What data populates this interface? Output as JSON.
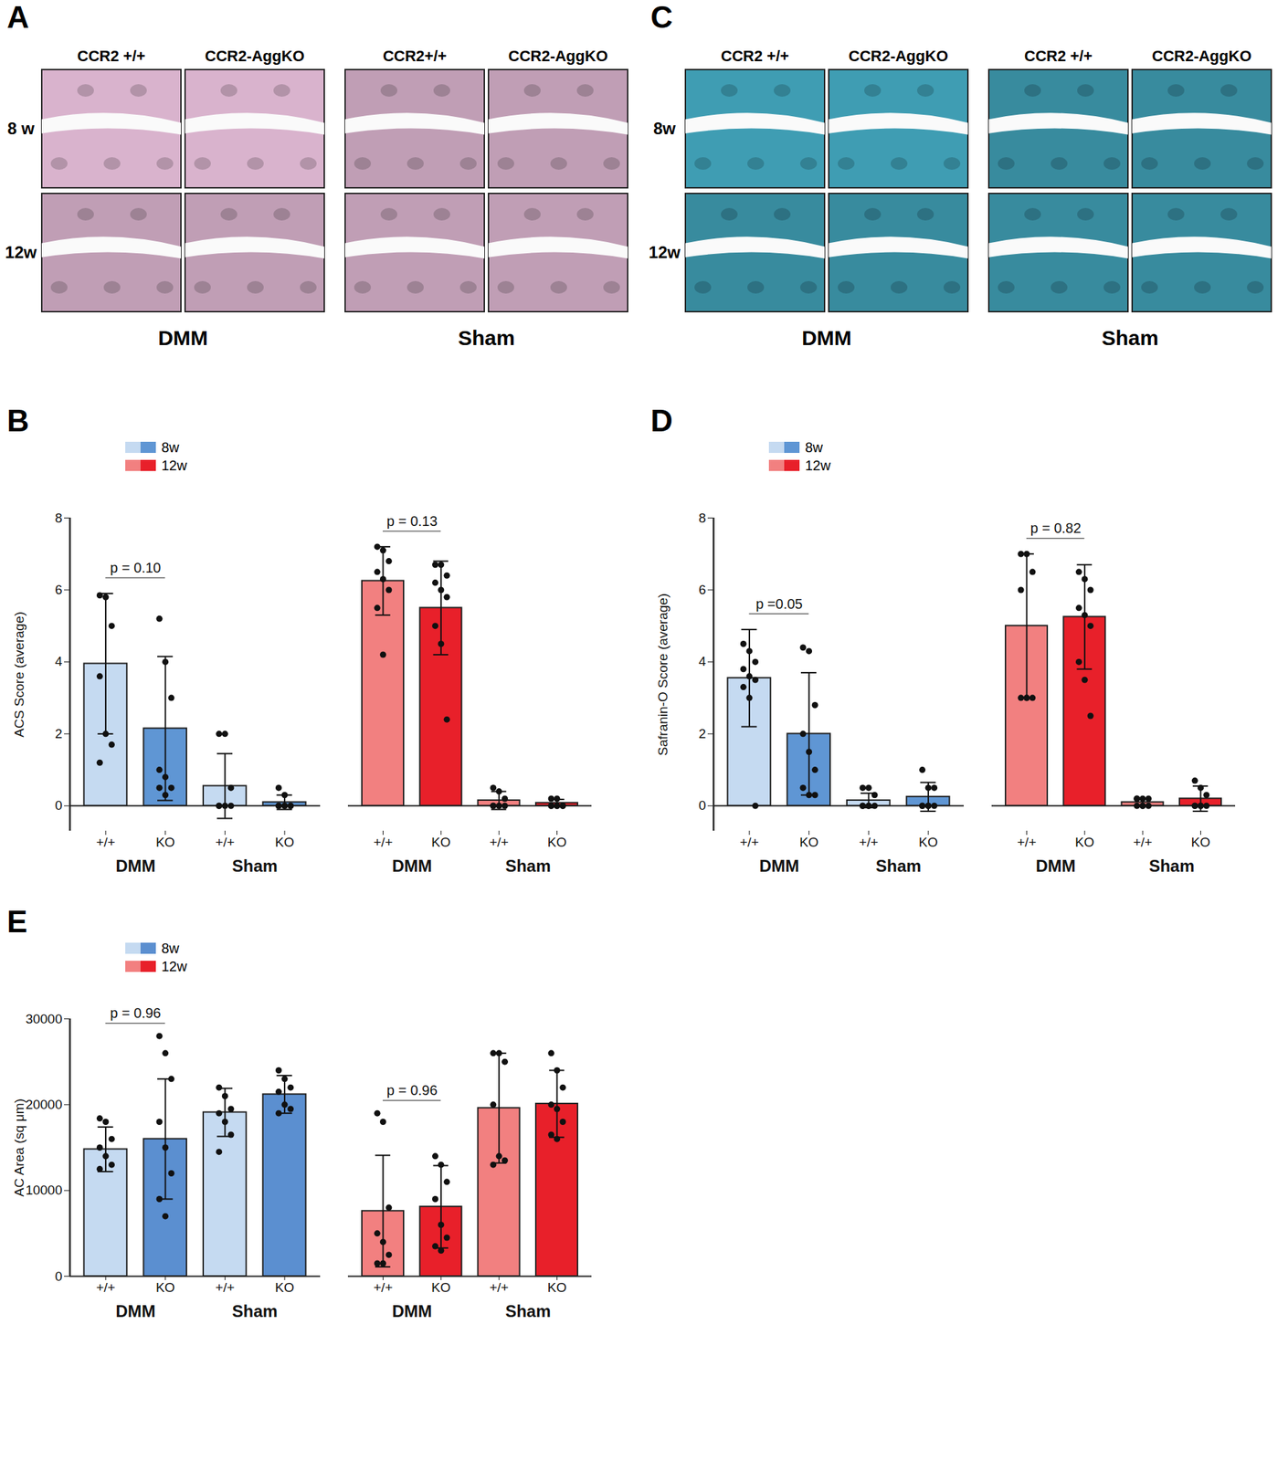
{
  "figure_panels": [
    {
      "panel": "A",
      "color": "#d9b3cd",
      "row_labels": [
        "8 w",
        "12w"
      ],
      "groups": [
        {
          "name": "DMM",
          "columns": [
            "CCR2 +/+",
            "CCR2-AggKO"
          ]
        },
        {
          "name": "Sham",
          "columns": [
            "CCR2+/+",
            "CCR2-AggKO"
          ]
        }
      ]
    },
    {
      "panel": "C",
      "color": "#3f9db3",
      "row_labels": [
        "8w",
        "12w"
      ],
      "groups": [
        {
          "name": "DMM",
          "columns": [
            "CCR2 +/+",
            "CCR2-AggKO"
          ]
        },
        {
          "name": "Sham",
          "columns": [
            "CCR2 +/+",
            "CCR2-AggKO"
          ]
        }
      ]
    }
  ],
  "chart_data": [
    {
      "panel": "B",
      "type": "bar",
      "ylabel": "ACS Score (average)",
      "ylim": [
        -0.7,
        8
      ],
      "yticks": [
        0,
        2,
        4,
        6,
        8
      ],
      "legend": "top-left",
      "groups": [
        "DMM",
        "Sham"
      ],
      "categories": [
        "+/+",
        "KO",
        "+/+",
        "KO"
      ],
      "series": [
        {
          "name": "8w",
          "colors": [
            "#c5daf1",
            "#5f96d4",
            "#c5daf1",
            "#5f96d4"
          ],
          "values": [
            3.95,
            2.15,
            0.55,
            0.1
          ],
          "error": [
            1.95,
            2.0,
            0.9,
            0.2
          ],
          "points": [
            [
              5.85,
              5.8,
              5.0,
              3.6,
              2.0,
              1.7,
              1.2
            ],
            [
              5.2,
              4.0,
              3.0,
              1.0,
              0.8,
              0.5,
              0.5,
              0.3
            ],
            [
              2.0,
              2.0,
              0.5,
              0,
              0,
              0,
              0
            ],
            [
              0.5,
              0.3,
              0,
              0,
              0,
              0,
              0,
              0
            ]
          ],
          "annotation": "p = 0.10"
        },
        {
          "name": "12w",
          "colors": [
            "#f28080",
            "#e8202a",
            "#f28080",
            "#e8202a"
          ],
          "values": [
            6.25,
            5.5,
            0.15,
            0.08
          ],
          "error": [
            0.95,
            1.3,
            0.25,
            0.1
          ],
          "points": [
            [
              7.2,
              7.1,
              6.8,
              6.5,
              6.3,
              6.0,
              5.5,
              4.2
            ],
            [
              6.7,
              6.7,
              6.4,
              6.2,
              6.0,
              5.8,
              5.0,
              4.5,
              2.4
            ],
            [
              0.5,
              0.4,
              0.2,
              0,
              0,
              0,
              0
            ],
            [
              0.2,
              0.2,
              0,
              0,
              0,
              0,
              0,
              0
            ]
          ],
          "annotation": "p = 0.13"
        }
      ]
    },
    {
      "panel": "D",
      "type": "bar",
      "ylabel": "Safranin-O Score (average)",
      "ylim": [
        -0.7,
        8
      ],
      "yticks": [
        0,
        2,
        4,
        6,
        8
      ],
      "legend": "top-left",
      "groups": [
        "DMM",
        "Sham"
      ],
      "categories": [
        "+/+",
        "KO",
        "+/+",
        "KO"
      ],
      "series": [
        {
          "name": "8w",
          "colors": [
            "#c5daf1",
            "#5f96d4",
            "#c5daf1",
            "#5f96d4"
          ],
          "values": [
            3.55,
            2.0,
            0.15,
            0.25
          ],
          "error": [
            1.35,
            1.7,
            0.2,
            0.4
          ],
          "points": [
            [
              4.5,
              4.3,
              4.0,
              3.8,
              3.6,
              3.5,
              3.3,
              3.0,
              0
            ],
            [
              4.4,
              4.3,
              2.8,
              2.0,
              1.5,
              1.0,
              0.5,
              0.3,
              0.3
            ],
            [
              0.5,
              0.5,
              0.3,
              0,
              0,
              0,
              0,
              0
            ],
            [
              1.0,
              0.5,
              0.5,
              0,
              0,
              0,
              0,
              0
            ]
          ],
          "annotation": "p =0.05"
        },
        {
          "name": "12w",
          "colors": [
            "#f28080",
            "#e8202a",
            "#f28080",
            "#e8202a"
          ],
          "values": [
            5.0,
            5.25,
            0.1,
            0.2
          ],
          "error": [
            2.0,
            1.45,
            0.1,
            0.35
          ],
          "points": [
            [
              7.0,
              7.0,
              6.5,
              6.0,
              3.0,
              3.0,
              3.0,
              3.0
            ],
            [
              6.5,
              6.3,
              6.0,
              5.5,
              5.3,
              5.0,
              4.0,
              3.5,
              2.5
            ],
            [
              0.2,
              0.2,
              0.2,
              0.2,
              0,
              0,
              0,
              0
            ],
            [
              0.7,
              0.5,
              0.3,
              0,
              0,
              0,
              0,
              0
            ]
          ],
          "annotation": "p = 0.82"
        }
      ]
    },
    {
      "panel": "E",
      "type": "bar",
      "ylabel": "AC Area (sq μm)",
      "ylim": [
        0,
        30000
      ],
      "yticks": [
        0,
        10000,
        20000,
        30000
      ],
      "legend": "top-left",
      "groups": [
        "DMM",
        "Sham"
      ],
      "categories": [
        "+/+",
        "KO",
        "+/+",
        "KO"
      ],
      "series": [
        {
          "name": "8w",
          "colors": [
            "#c5daf1",
            "#5b8fd0",
            "#c5daf1",
            "#5b8fd0"
          ],
          "values": [
            14800,
            16000,
            19100,
            21200
          ],
          "error": [
            2600,
            7000,
            2800,
            2200
          ],
          "points": [
            [
              18400,
              18000,
              16000,
              15000,
              14000,
              13000,
              12500
            ],
            [
              28000,
              26000,
              23000,
              18000,
              15000,
              12000,
              9000,
              7000
            ],
            [
              22000,
              21000,
              19500,
              19000,
              18000,
              16500,
              14500
            ],
            [
              24000,
              23000,
              22000,
              21500,
              20000,
              19500,
              19000
            ]
          ],
          "annotation": "p = 0.96"
        },
        {
          "name": "12w",
          "colors": [
            "#f28080",
            "#e8202a",
            "#f28080",
            "#e8202a"
          ],
          "values": [
            7600,
            8100,
            19600,
            20100
          ],
          "error": [
            6500,
            4800,
            6400,
            3900
          ],
          "points": [
            [
              19000,
              18000,
              8000,
              5000,
              4000,
              2500,
              1500,
              1500
            ],
            [
              14000,
              13000,
              11000,
              9000,
              6000,
              4500,
              3500,
              3000
            ],
            [
              26000,
              26000,
              25000,
              20000,
              14000,
              13500,
              13000
            ],
            [
              26000,
              24000,
              22000,
              20000,
              19500,
              18000,
              16500,
              16000
            ]
          ],
          "annotation": "p = 0.96"
        }
      ]
    }
  ]
}
